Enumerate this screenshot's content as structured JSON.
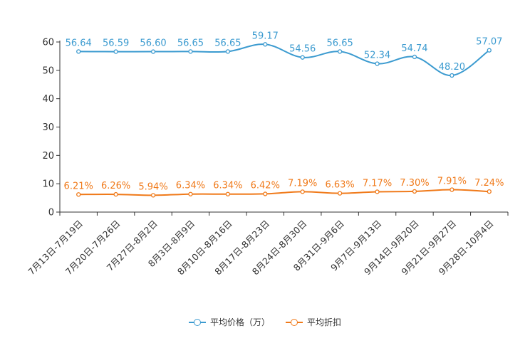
{
  "chart_data": {
    "type": "line",
    "categories": [
      "7月13日-7月19日",
      "7月20日-7月26日",
      "7月27日-8月2日",
      "8月3日-8月9日",
      "8月10日-8月16日",
      "8月17日-8月23日",
      "8月24日-8月30日",
      "8月31日-9月6日",
      "9月7日-9月13日",
      "9月14日-9月20日",
      "9月21日-9月27日",
      "9月28日-10月4日"
    ],
    "ylim": [
      0,
      60
    ],
    "yticks": [
      0,
      10,
      20,
      30,
      40,
      50,
      60
    ],
    "series": [
      {
        "name": "平均价格（万）",
        "color": "#3c9bd0",
        "values": [
          56.64,
          56.59,
          56.6,
          56.65,
          56.65,
          59.17,
          54.56,
          56.65,
          52.34,
          54.74,
          48.2,
          57.07
        ],
        "labels": [
          "56.64",
          "56.59",
          "56.60",
          "56.65",
          "56.65",
          "59.17",
          "54.56",
          "56.65",
          "52.34",
          "54.74",
          "48.20",
          "57.07"
        ]
      },
      {
        "name": "平均折扣",
        "color": "#f07a1a",
        "values": [
          6.21,
          6.26,
          5.94,
          6.34,
          6.34,
          6.42,
          7.19,
          6.63,
          7.17,
          7.3,
          7.91,
          7.24
        ],
        "labels": [
          "6.21%",
          "6.26%",
          "5.94%",
          "6.34%",
          "6.34%",
          "6.42%",
          "7.19%",
          "6.63%",
          "7.17%",
          "7.30%",
          "7.91%",
          "7.24%"
        ]
      }
    ]
  }
}
